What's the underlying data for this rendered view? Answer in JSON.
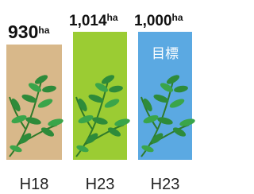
{
  "items": [
    {
      "value": "930",
      "unit": "ha",
      "label": "H18"
    },
    {
      "value": "1,014",
      "unit": "ha",
      "label": "H23"
    },
    {
      "value": "1,000",
      "unit": "ha",
      "label": "H23",
      "note": "目標"
    }
  ]
}
